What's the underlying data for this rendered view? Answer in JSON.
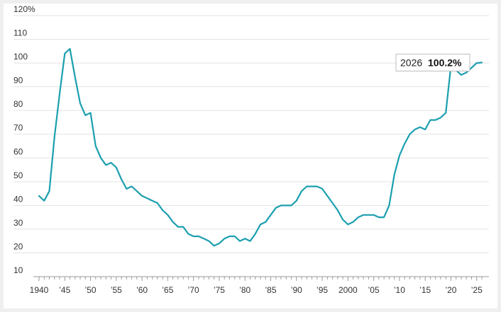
{
  "colors": {
    "line": "#1b9faf",
    "grid": "#e3e3e3",
    "axis": "#999999",
    "background": "#ffffff",
    "page": "#efefef"
  },
  "callout": {
    "year": "2026",
    "value": "100.2%"
  },
  "chart_data": {
    "type": "line",
    "title": "",
    "xlabel": "",
    "ylabel": "",
    "ylim": [
      10,
      120
    ],
    "xlim": [
      1940,
      2026
    ],
    "grid": "horizontal",
    "y_ticks": [
      10,
      20,
      30,
      40,
      50,
      60,
      70,
      80,
      90,
      100,
      110,
      120
    ],
    "y_tick_labels": [
      "10",
      "20",
      "30",
      "40",
      "50",
      "60",
      "70",
      "80",
      "90",
      "100",
      "110",
      "120%"
    ],
    "x_ticks": [
      1940,
      1945,
      1950,
      1955,
      1960,
      1965,
      1970,
      1975,
      1980,
      1985,
      1990,
      1995,
      2000,
      2005,
      2010,
      2015,
      2020,
      2025
    ],
    "x_tick_labels": [
      "1940",
      "’45",
      "’50",
      "’55",
      "’60",
      "’65",
      "’70",
      "’75",
      "’80",
      "’85",
      "’90",
      "’95",
      "2000",
      "’05",
      "’10",
      "’15",
      "’20",
      "’25"
    ],
    "series": [
      {
        "x": [
          1940,
          1941,
          1942,
          1943,
          1944,
          1945,
          1946,
          1947,
          1948,
          1949,
          1950,
          1951,
          1952,
          1953,
          1954,
          1955,
          1956,
          1957,
          1958,
          1959,
          1960,
          1961,
          1962,
          1963,
          1964,
          1965,
          1966,
          1967,
          1968,
          1969,
          1970,
          1971,
          1972,
          1973,
          1974,
          1975,
          1976,
          1977,
          1978,
          1979,
          1980,
          1981,
          1982,
          1983,
          1984,
          1985,
          1986,
          1987,
          1988,
          1989,
          1990,
          1991,
          1992,
          1993,
          1994,
          1995,
          1996,
          1997,
          1998,
          1999,
          2000,
          2001,
          2002,
          2003,
          2004,
          2005,
          2006,
          2007,
          2008,
          2009,
          2010,
          2011,
          2012,
          2013,
          2014,
          2015,
          2016,
          2017,
          2018,
          2019,
          2020,
          2021,
          2022,
          2023,
          2024,
          2025,
          2026
        ],
        "values": [
          44,
          42,
          46,
          69,
          87,
          104,
          106,
          94,
          83,
          78,
          79,
          65,
          60,
          57,
          58,
          56,
          51,
          47,
          48,
          46,
          44,
          43,
          42,
          41,
          38,
          36,
          33,
          31,
          31,
          28,
          27,
          27,
          26,
          25,
          23,
          24,
          26,
          27,
          27,
          25,
          26,
          25,
          28,
          32,
          33,
          36,
          39,
          40,
          40,
          40,
          42,
          46,
          48,
          48,
          48,
          47,
          44,
          41,
          38,
          34,
          32,
          33,
          35,
          36,
          36,
          36,
          35,
          35,
          40,
          53,
          61,
          66,
          70,
          72,
          73,
          72,
          76,
          76,
          77,
          79,
          99,
          97,
          95,
          96,
          98,
          100,
          100.2
        ]
      }
    ]
  }
}
